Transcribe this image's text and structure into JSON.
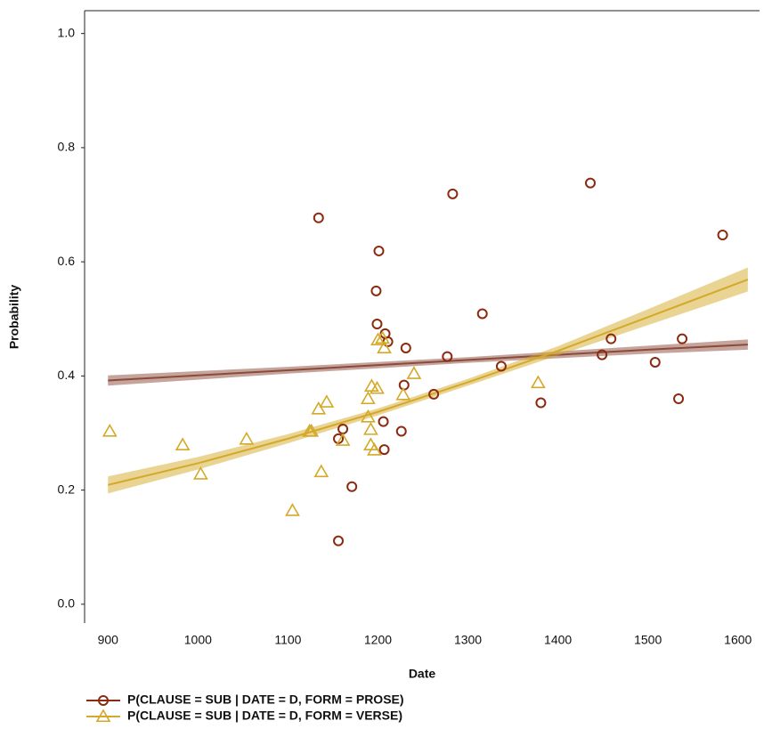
{
  "chart_data": {
    "type": "scatter",
    "x_label": "Date",
    "y_label": "Probability",
    "xlim": [
      874,
      1624
    ],
    "ylim": [
      -0.033,
      1.04
    ],
    "xticks": [
      900,
      1000,
      1100,
      1200,
      1300,
      1400,
      1500,
      1600
    ],
    "yticks": [
      {
        "value": 0,
        "label": "0.0"
      },
      0.2,
      0.4,
      0.6,
      0.8,
      {
        "value": 1,
        "label": "1.0"
      }
    ],
    "series": [
      {
        "name": "P(CLAUSE = SUB | DATE = D, FORM = PROSE)",
        "color": "#8b2a10",
        "marker": "circle",
        "x": [
          1134,
          1201,
          1198,
          1199,
          1208,
          1211,
          1231,
          1229,
          1226,
          1206,
          1207,
          1262,
          1277,
          1283,
          1316,
          1337,
          1381,
          1436,
          1449,
          1459,
          1508,
          1534,
          1538,
          1583,
          1161,
          1156,
          1171,
          1156
        ],
        "values": [
          0.677,
          0.619,
          0.549,
          0.491,
          0.474,
          0.46,
          0.449,
          0.384,
          0.303,
          0.32,
          0.271,
          0.368,
          0.434,
          0.719,
          0.509,
          0.417,
          0.353,
          0.738,
          0.437,
          0.465,
          0.424,
          0.36,
          0.465,
          0.647,
          0.307,
          0.29,
          0.206,
          0.111
        ],
        "fit": {
          "color": "#8b4a3a",
          "x": [
            900,
            1100,
            1300,
            1500,
            1611
          ],
          "values": [
            0.392,
            0.41,
            0.428,
            0.446,
            0.455
          ],
          "lower": [
            0.383,
            0.404,
            0.423,
            0.439,
            0.446
          ],
          "upper": [
            0.401,
            0.416,
            0.433,
            0.453,
            0.464
          ]
        }
      },
      {
        "name": "P(CLAUSE = SUB | DATE = D, FORM = VERSE)",
        "color": "#d4a929",
        "marker": "triangle",
        "x": [
          902,
          983,
          1003,
          1054,
          1105,
          1124,
          1126,
          1137,
          1134,
          1143,
          1161,
          1189,
          1189,
          1192,
          1192,
          1196,
          1193,
          1199,
          1200,
          1207,
          1205,
          1228,
          1240,
          1378
        ],
        "values": [
          0.303,
          0.279,
          0.228,
          0.289,
          0.164,
          0.303,
          0.303,
          0.232,
          0.342,
          0.354,
          0.287,
          0.328,
          0.36,
          0.306,
          0.279,
          0.27,
          0.382,
          0.378,
          0.463,
          0.449,
          0.466,
          0.367,
          0.404,
          0.388
        ],
        "fit": {
          "color": "#d4a929",
          "x": [
            900,
            1000,
            1100,
            1200,
            1300,
            1400,
            1500,
            1611
          ],
          "values": [
            0.209,
            0.247,
            0.29,
            0.337,
            0.389,
            0.444,
            0.503,
            0.569
          ],
          "lower": [
            0.194,
            0.236,
            0.282,
            0.331,
            0.383,
            0.436,
            0.489,
            0.548
          ],
          "upper": [
            0.224,
            0.258,
            0.298,
            0.343,
            0.395,
            0.452,
            0.517,
            0.59
          ]
        }
      }
    ]
  }
}
